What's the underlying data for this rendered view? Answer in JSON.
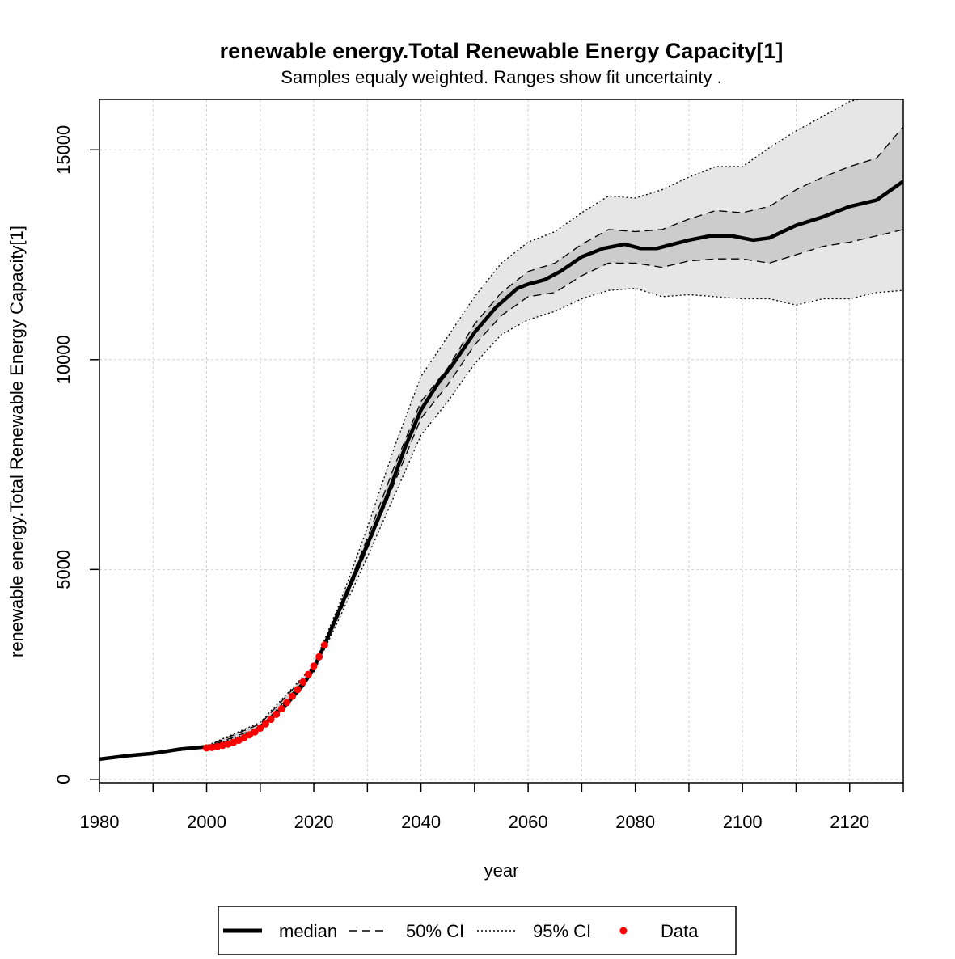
{
  "chart_data": {
    "type": "line",
    "title": "renewable energy.Total Renewable Energy Capacity[1]",
    "subtitle": "Samples equaly weighted. Ranges show  fit uncertainty .",
    "xlabel": "year",
    "ylabel": "renewable energy.Total Renewable Energy Capacity[1]",
    "xlim": [
      1980,
      2130
    ],
    "ylim": [
      -80,
      16200
    ],
    "x_ticks": [
      1980,
      2000,
      2020,
      2040,
      2060,
      2080,
      2100,
      2120
    ],
    "x_tick_labels": [
      "1980",
      "2000",
      "2020",
      "2040",
      "2060",
      "2080",
      "2100",
      "2120"
    ],
    "y_ticks": [
      0,
      5000,
      10000,
      15000
    ],
    "y_tick_labels": [
      "0",
      "5000",
      "10000",
      "15000"
    ],
    "grid": true,
    "legend": {
      "position": "bottom",
      "entries": [
        {
          "label": "median",
          "style": "solid-thick"
        },
        {
          "label": "50% CI",
          "style": "dashed"
        },
        {
          "label": "95% CI",
          "style": "dotted"
        },
        {
          "label": "Data",
          "style": "red-point"
        }
      ]
    },
    "colors": {
      "median": "#000000",
      "ci50_fill": "#cccccc",
      "ci95_fill": "#e6e6e6",
      "data": "#ff0000",
      "grid": "#cfcfcf"
    },
    "series": [
      {
        "name": "median",
        "x": [
          1980,
          1985,
          1990,
          1995,
          2000,
          2003,
          2006,
          2009,
          2012,
          2015,
          2018,
          2020,
          2022,
          2025,
          2028,
          2031,
          2034,
          2037,
          2040,
          2043,
          2046,
          2050,
          2054,
          2058,
          2060,
          2063,
          2066,
          2070,
          2074,
          2078,
          2081,
          2084,
          2087,
          2090,
          2094,
          2098,
          2102,
          2105,
          2110,
          2115,
          2120,
          2125,
          2130
        ],
        "y": [
          480,
          560,
          620,
          720,
          780,
          830,
          960,
          1150,
          1450,
          1800,
          2250,
          2650,
          3200,
          4100,
          5000,
          5900,
          6850,
          7900,
          8800,
          9400,
          9900,
          10650,
          11250,
          11700,
          11800,
          11900,
          12100,
          12450,
          12650,
          12750,
          12650,
          12650,
          12750,
          12850,
          12950,
          12950,
          12850,
          12900,
          13200,
          13400,
          13650,
          13800,
          14250
        ]
      },
      {
        "name": "50% CI upper",
        "x": [
          1980,
          2000,
          2010,
          2020,
          2025,
          2030,
          2035,
          2040,
          2045,
          2050,
          2055,
          2060,
          2065,
          2070,
          2075,
          2080,
          2085,
          2090,
          2095,
          2100,
          2105,
          2110,
          2115,
          2120,
          2125,
          2130
        ],
        "y": [
          490,
          790,
          1320,
          2680,
          4150,
          5750,
          7450,
          9000,
          9800,
          10850,
          11600,
          12100,
          12300,
          12750,
          13100,
          13050,
          13100,
          13350,
          13550,
          13500,
          13650,
          14050,
          14350,
          14600,
          14800,
          15550
        ]
      },
      {
        "name": "50% CI lower",
        "x": [
          1980,
          2000,
          2010,
          2020,
          2025,
          2030,
          2035,
          2040,
          2045,
          2050,
          2055,
          2060,
          2065,
          2070,
          2075,
          2080,
          2085,
          2090,
          2095,
          2100,
          2105,
          2110,
          2115,
          2120,
          2125,
          2130
        ],
        "y": [
          470,
          770,
          1240,
          2600,
          4000,
          5500,
          7050,
          8600,
          9400,
          10350,
          11050,
          11500,
          11600,
          12000,
          12300,
          12300,
          12200,
          12350,
          12400,
          12400,
          12300,
          12500,
          12700,
          12800,
          12950,
          13100
        ]
      },
      {
        "name": "95% CI upper",
        "x": [
          1980,
          2000,
          2010,
          2020,
          2025,
          2030,
          2035,
          2040,
          2045,
          2050,
          2055,
          2060,
          2065,
          2070,
          2075,
          2080,
          2085,
          2090,
          2095,
          2100,
          2105,
          2110,
          2115,
          2120,
          2125,
          2130
        ],
        "y": [
          500,
          800,
          1360,
          2720,
          4250,
          6000,
          7900,
          9600,
          10550,
          11500,
          12300,
          12800,
          13050,
          13500,
          13900,
          13850,
          14050,
          14350,
          14600,
          14600,
          15050,
          15450,
          15800,
          16150,
          16300,
          16400
        ]
      },
      {
        "name": "95% CI lower",
        "x": [
          1980,
          2000,
          2010,
          2020,
          2025,
          2030,
          2035,
          2040,
          2045,
          2050,
          2055,
          2060,
          2065,
          2070,
          2075,
          2080,
          2085,
          2090,
          2095,
          2100,
          2105,
          2110,
          2115,
          2120,
          2125,
          2130
        ],
        "y": [
          460,
          760,
          1200,
          2560,
          3900,
          5300,
          6750,
          8200,
          9000,
          9900,
          10600,
          10950,
          11150,
          11450,
          11650,
          11700,
          11500,
          11550,
          11500,
          11450,
          11450,
          11300,
          11450,
          11450,
          11600,
          11650
        ]
      },
      {
        "name": "Data",
        "x": [
          2000,
          2001,
          2002,
          2003,
          2004,
          2005,
          2006,
          2007,
          2008,
          2009,
          2010,
          2011,
          2012,
          2013,
          2014,
          2015,
          2016,
          2017,
          2018,
          2019,
          2020,
          2021,
          2022
        ],
        "y": [
          750,
          760,
          780,
          810,
          840,
          880,
          930,
          990,
          1060,
          1130,
          1220,
          1320,
          1430,
          1550,
          1680,
          1830,
          1980,
          2140,
          2320,
          2500,
          2700,
          2920,
          3200
        ]
      }
    ]
  }
}
